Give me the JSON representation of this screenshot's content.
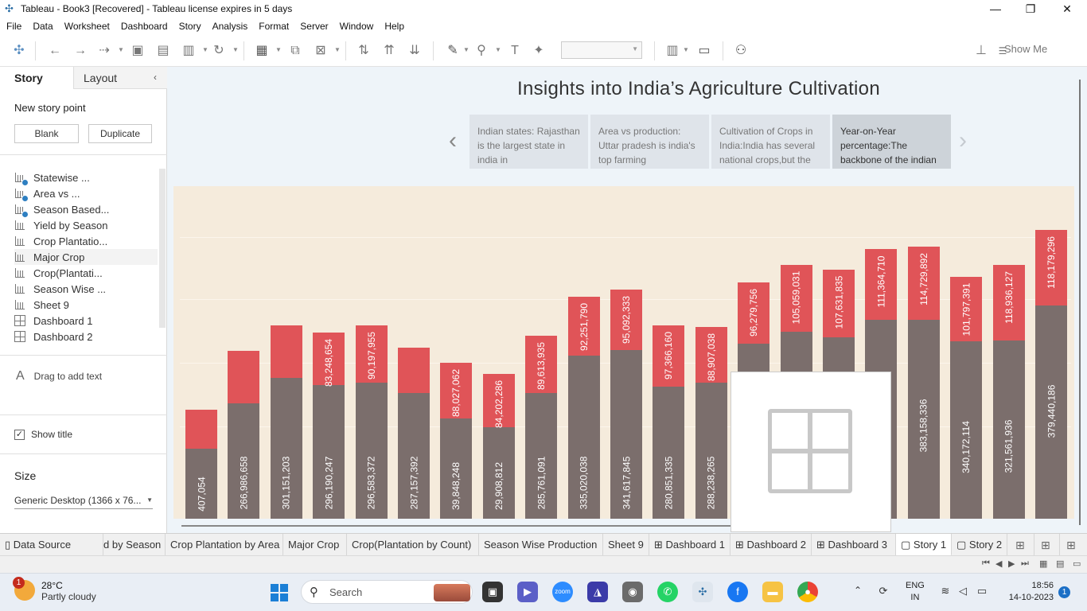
{
  "window": {
    "title": "Tableau - Book3 [Recovered] - Tableau license expires in 5 days",
    "minimize": "—",
    "restore": "❐",
    "close": "✕"
  },
  "menu": [
    "File",
    "Data",
    "Worksheet",
    "Dashboard",
    "Story",
    "Analysis",
    "Format",
    "Server",
    "Window",
    "Help"
  ],
  "toolbar": {
    "show_me": "Show Me"
  },
  "left_panel": {
    "tabs": {
      "story": "Story",
      "layout": "Layout"
    },
    "collapse": "‹",
    "new_story_point": "New story point",
    "blank_button": "Blank",
    "duplicate_button": "Duplicate",
    "sheets": [
      {
        "label": "Statewise ...",
        "type": "sheet-check"
      },
      {
        "label": "Area vs ...",
        "type": "sheet-check"
      },
      {
        "label": "Season Based...",
        "type": "sheet-check"
      },
      {
        "label": "Yield by Season",
        "type": "sheet"
      },
      {
        "label": "Crop Plantatio...",
        "type": "sheet"
      },
      {
        "label": "Major Crop",
        "type": "sheet"
      },
      {
        "label": "Crop(Plantati...",
        "type": "sheet"
      },
      {
        "label": "Season Wise ...",
        "type": "sheet"
      },
      {
        "label": "Sheet 9",
        "type": "sheet"
      },
      {
        "label": "Dashboard 1",
        "type": "dashboard"
      },
      {
        "label": "Dashboard 2",
        "type": "dashboard"
      }
    ],
    "drag_text_icon": "A",
    "drag_text": "Drag to add text",
    "show_title": "Show title",
    "show_title_checked": "✓",
    "size_label": "Size",
    "size_value": "Generic Desktop (1366 x 76...",
    "size_caret": "▼"
  },
  "story": {
    "title": "Insights into India’s Agriculture Cultivation",
    "prev_arrow": "‹",
    "next_arrow": "›",
    "points": [
      {
        "text": "Indian states: Rajasthan is the largest state in india in"
      },
      {
        "text": "Area vs production: Uttar pradesh is india's top farming"
      },
      {
        "text": "Cultivation of Crops in India:India has several national crops,but the"
      },
      {
        "text": "Year-on-Year percentage:The backbone of the indian"
      }
    ],
    "active_point": 3
  },
  "chart_data": {
    "type": "bar",
    "stacked": true,
    "series": [
      {
        "color": "#7b6e6c",
        "values": [
          null,
          266986658,
          301151203,
          296190247,
          296583372,
          287157392,
          null,
          null,
          285761091,
          335020038,
          341617845,
          280851335,
          288238265,
          null,
          null,
          null,
          null,
          383158336,
          340172114,
          321561936,
          379440186
        ],
        "labels": [
          "407,054",
          "266,986,658",
          "301,151,203",
          "296,190,247",
          "296,583,372",
          "287,157,392",
          "39,848,248",
          "29,908,812",
          "285,761,091",
          "335,020,038",
          "341,617,845",
          "280,851,335",
          "288,238,265",
          "",
          "",
          "",
          "",
          "383,158,336",
          "340,172,114",
          "321,561,936",
          "379,440,186"
        ],
        "heights": [
          88,
          145,
          177,
          168,
          171,
          158,
          126,
          115,
          158,
          205,
          212,
          166,
          171,
          220,
          235,
          228,
          250,
          250,
          223,
          224,
          268
        ]
      },
      {
        "color": "#e05458",
        "labels": [
          "",
          "",
          "",
          "83,248,654",
          "90,197,955",
          "",
          "88,027,062",
          "84,202,286",
          "89,613,935",
          "92,251,790",
          "95,092,333",
          "97,366,160",
          "88,907,038",
          "96,279,756",
          "105,059,031",
          "107,631,835",
          "111,364,710",
          "114,729,892",
          "101,797,391",
          "118,936,127",
          "118,179,296"
        ],
        "heights": [
          49,
          66,
          66,
          66,
          72,
          57,
          70,
          67,
          72,
          74,
          76,
          77,
          70,
          77,
          84,
          85,
          89,
          92,
          81,
          95,
          95
        ]
      }
    ],
    "grid": true,
    "legend": "none"
  },
  "sheet_tabs": [
    {
      "label": "Data Source",
      "icon": "▯"
    },
    {
      "label": "d by Season",
      "icon": ""
    },
    {
      "label": "Crop Plantation by Area",
      "icon": ""
    },
    {
      "label": "Major Crop",
      "icon": ""
    },
    {
      "label": "Crop(Plantation by Count)",
      "icon": ""
    },
    {
      "label": "Season Wise Production",
      "icon": ""
    },
    {
      "label": "Sheet 9",
      "icon": ""
    },
    {
      "label": "Dashboard 1",
      "icon": "⊞"
    },
    {
      "label": "Dashboard 2",
      "icon": "⊞"
    },
    {
      "label": "Dashboard 3",
      "icon": "⊞"
    },
    {
      "label": "Story 1",
      "icon": "▢"
    },
    {
      "label": "Story 2",
      "icon": "▢"
    }
  ],
  "taskbar": {
    "weather_temp": "28°C",
    "weather_desc": "Partly cloudy",
    "weather_badge": "1",
    "search": "Search",
    "lang_1": "ENG",
    "lang_2": "IN",
    "time": "18:56",
    "date": "14-10-2023",
    "notif": "1",
    "tray_up": "⌃"
  }
}
